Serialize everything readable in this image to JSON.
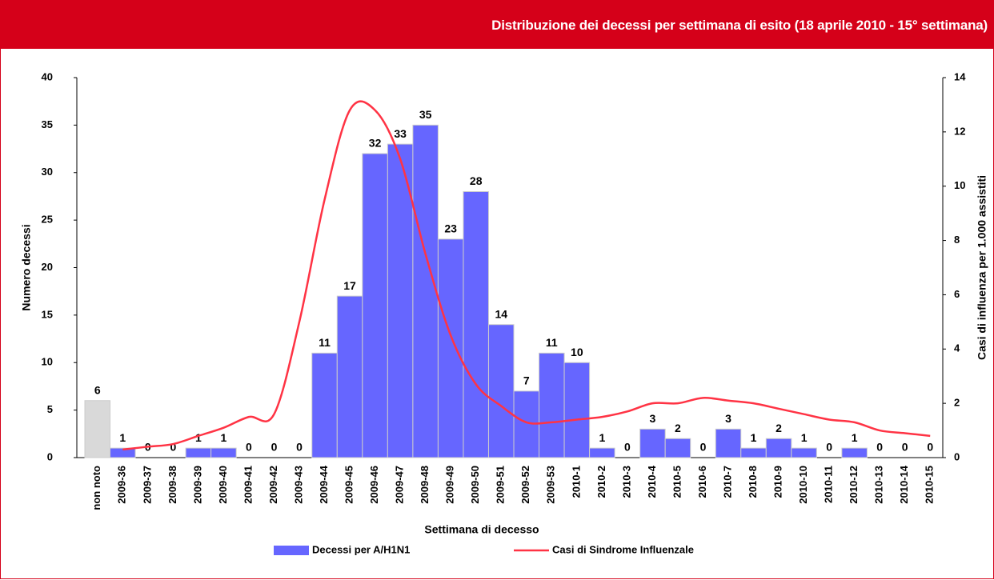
{
  "header": {
    "title": "Distribuzione dei decessi per settimana di esito (18 aprile 2010 - 15° settimana)"
  },
  "chart_data": {
    "type": "bar_line",
    "x_label": "Settimana di decesso",
    "y_label": "Numero decessi",
    "y2_label": "Casi di influenza per 1.000 assistiti",
    "categories": [
      "non noto",
      "2009-36",
      "2009-37",
      "2009-38",
      "2009-39",
      "2009-40",
      "2009-41",
      "2009-42",
      "2009-43",
      "2009-44",
      "2009-45",
      "2009-46",
      "2009-47",
      "2009-48",
      "2009-49",
      "2009-50",
      "2009-51",
      "2009-52",
      "2009-53",
      "2010-1",
      "2010-2",
      "2010-3",
      "2010-4",
      "2010-5",
      "2010-6",
      "2010-7",
      "2010-8",
      "2010-9",
      "2010-10",
      "2010-11",
      "2010-12",
      "2010-13",
      "2010-14",
      "2010-15"
    ],
    "series": [
      {
        "name": "Decessi per A/H1N1",
        "type": "bar",
        "color": "#6666ff",
        "first_color": "#d9d9d9",
        "values": [
          6,
          1,
          0,
          0,
          1,
          1,
          0,
          0,
          0,
          11,
          17,
          32,
          33,
          35,
          23,
          28,
          14,
          7,
          11,
          10,
          1,
          0,
          3,
          2,
          0,
          3,
          1,
          2,
          1,
          0,
          1,
          0,
          0,
          0
        ]
      },
      {
        "name": "Casi di Sindrome Influenzale",
        "type": "line",
        "axis": "y2",
        "color": "#ff3344",
        "values": [
          null,
          0.3,
          0.4,
          0.5,
          0.8,
          1.1,
          1.5,
          1.6,
          5.0,
          9.5,
          12.8,
          12.8,
          11.0,
          7.5,
          4.5,
          2.7,
          1.9,
          1.3,
          1.3,
          1.4,
          1.5,
          1.7,
          2.0,
          2.0,
          2.2,
          2.1,
          2.0,
          1.8,
          1.6,
          1.4,
          1.3,
          1.0,
          0.9,
          0.8
        ]
      }
    ],
    "ylim": [
      0,
      40
    ],
    "yticks": [
      0,
      5,
      10,
      15,
      20,
      25,
      30,
      35,
      40
    ],
    "y2lim": [
      0,
      14
    ],
    "y2ticks": [
      0,
      2,
      4,
      6,
      8,
      10,
      12,
      14
    ],
    "legend": "bottom"
  }
}
